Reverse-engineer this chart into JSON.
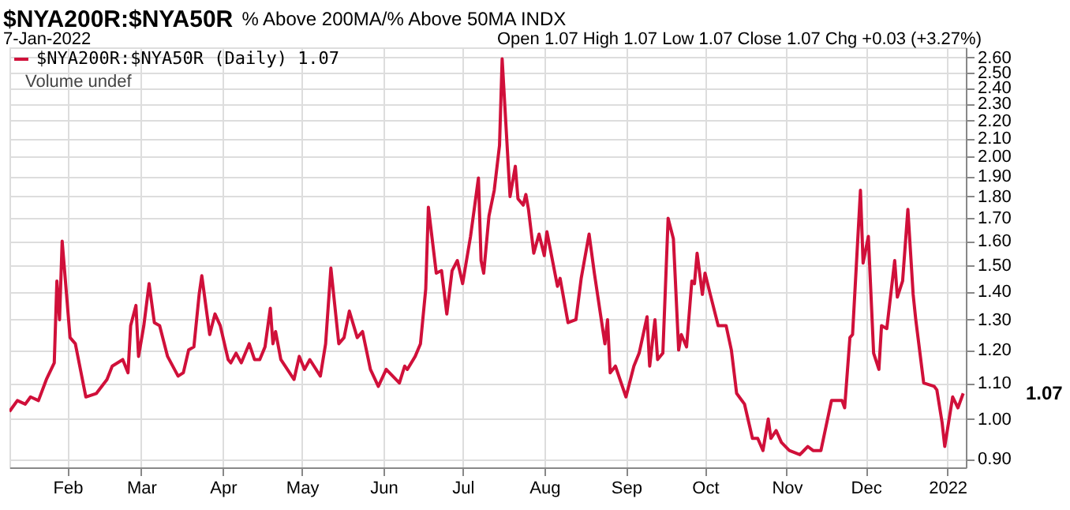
{
  "chart_data": {
    "type": "line",
    "title": "$NYA200R:$NYA50R",
    "subtitle": "% Above 200MA/% Above 50MA  INDX",
    "annotations": [
      "7-Jan-2022",
      "Open 1.07  High 1.07  Low 1.07  Close 1.07  Chg +0.03 (+3.27%)",
      "Volume undef",
      "1.07"
    ],
    "x": [
      "2021-01-10",
      "2021-01-13",
      "2021-01-16",
      "2021-01-18",
      "2021-01-21",
      "2021-01-24",
      "2021-01-27",
      "2021-01-28",
      "2021-01-29",
      "2021-01-30",
      "2021-02-02",
      "2021-02-04",
      "2021-02-08",
      "2021-02-12",
      "2021-02-16",
      "2021-02-18",
      "2021-02-22",
      "2021-02-24",
      "2021-02-25",
      "2021-02-27",
      "2021-02-28",
      "2021-03-02",
      "2021-03-04",
      "2021-03-06",
      "2021-03-08",
      "2021-03-11",
      "2021-03-15",
      "2021-03-17",
      "2021-03-19",
      "2021-03-21",
      "2021-03-23",
      "2021-03-24",
      "2021-03-27",
      "2021-03-29",
      "2021-03-31",
      "2021-04-03",
      "2021-04-04",
      "2021-04-06",
      "2021-04-08",
      "2021-04-11",
      "2021-04-13",
      "2021-04-15",
      "2021-04-17",
      "2021-04-19",
      "2021-04-20",
      "2021-04-21",
      "2021-04-23",
      "2021-04-28",
      "2021-04-30",
      "2021-05-02",
      "2021-05-04",
      "2021-05-08",
      "2021-05-10",
      "2021-05-12",
      "2021-05-15",
      "2021-05-17",
      "2021-05-19",
      "2021-05-22",
      "2021-05-24",
      "2021-05-27",
      "2021-05-30",
      "2021-06-02",
      "2021-06-07",
      "2021-06-09",
      "2021-06-10",
      "2021-06-13",
      "2021-06-15",
      "2021-06-17",
      "2021-06-18",
      "2021-06-21",
      "2021-06-23",
      "2021-06-25",
      "2021-06-27",
      "2021-06-29",
      "2021-07-01",
      "2021-07-04",
      "2021-07-07",
      "2021-07-08",
      "2021-07-09",
      "2021-07-11",
      "2021-07-13",
      "2021-07-15",
      "2021-07-16",
      "2021-07-19",
      "2021-07-21",
      "2021-07-22",
      "2021-07-24",
      "2021-07-25",
      "2021-07-26",
      "2021-07-28",
      "2021-07-30",
      "2021-08-01",
      "2021-08-02",
      "2021-08-06",
      "2021-08-07",
      "2021-08-10",
      "2021-08-13",
      "2021-08-15",
      "2021-08-18",
      "2021-08-20",
      "2021-08-24",
      "2021-08-25",
      "2021-08-26",
      "2021-08-28",
      "2021-09-01",
      "2021-09-04",
      "2021-09-06",
      "2021-09-09",
      "2021-09-10",
      "2021-09-12",
      "2021-09-13",
      "2021-09-15",
      "2021-09-17",
      "2021-09-19",
      "2021-09-21",
      "2021-09-22",
      "2021-09-24",
      "2021-09-26",
      "2021-09-27",
      "2021-09-28",
      "2021-09-30",
      "2021-10-01",
      "2021-10-03",
      "2021-10-06",
      "2021-10-09",
      "2021-10-11",
      "2021-10-13",
      "2021-10-16",
      "2021-10-19",
      "2021-10-21",
      "2021-10-23",
      "2021-10-25",
      "2021-10-26",
      "2021-10-28",
      "2021-10-30",
      "2021-11-02",
      "2021-11-06",
      "2021-11-09",
      "2021-11-11",
      "2021-11-14",
      "2021-11-18",
      "2021-11-22",
      "2021-11-23",
      "2021-11-25",
      "2021-11-26",
      "2021-11-29",
      "2021-11-30",
      "2021-12-02",
      "2021-12-04",
      "2021-12-06",
      "2021-12-07",
      "2021-12-09",
      "2021-12-12",
      "2021-12-13",
      "2021-12-15",
      "2021-12-17",
      "2021-12-19",
      "2021-12-20",
      "2021-12-23",
      "2021-12-27",
      "2021-12-28",
      "2021-12-30",
      "2021-12-31",
      "2022-01-03",
      "2022-01-05",
      "2022-01-07"
    ],
    "series": [
      {
        "name": "$NYA200R:$NYA50R (Daily) 1.07",
        "color": "#d0103a",
        "values": [
          1.02,
          1.05,
          1.04,
          1.06,
          1.05,
          1.11,
          1.16,
          1.44,
          1.3,
          1.6,
          1.24,
          1.22,
          1.06,
          1.07,
          1.11,
          1.15,
          1.17,
          1.13,
          1.28,
          1.35,
          1.18,
          1.28,
          1.43,
          1.29,
          1.28,
          1.18,
          1.12,
          1.13,
          1.2,
          1.21,
          1.39,
          1.46,
          1.25,
          1.32,
          1.28,
          1.17,
          1.16,
          1.19,
          1.16,
          1.22,
          1.17,
          1.17,
          1.21,
          1.34,
          1.22,
          1.26,
          1.17,
          1.11,
          1.18,
          1.14,
          1.17,
          1.12,
          1.22,
          1.49,
          1.22,
          1.24,
          1.33,
          1.24,
          1.26,
          1.14,
          1.09,
          1.14,
          1.1,
          1.15,
          1.14,
          1.18,
          1.22,
          1.41,
          1.75,
          1.47,
          1.48,
          1.32,
          1.48,
          1.52,
          1.43,
          1.62,
          1.89,
          1.52,
          1.47,
          1.71,
          1.83,
          2.06,
          2.59,
          1.8,
          1.95,
          1.79,
          1.76,
          1.81,
          1.74,
          1.55,
          1.63,
          1.54,
          1.64,
          1.42,
          1.45,
          1.29,
          1.3,
          1.45,
          1.63,
          1.47,
          1.22,
          1.3,
          1.13,
          1.15,
          1.06,
          1.15,
          1.19,
          1.31,
          1.15,
          1.3,
          1.17,
          1.19,
          1.7,
          1.61,
          1.2,
          1.25,
          1.21,
          1.44,
          1.43,
          1.55,
          1.39,
          1.47,
          1.39,
          1.28,
          1.28,
          1.2,
          1.07,
          1.04,
          0.95,
          0.95,
          0.92,
          1.0,
          0.95,
          0.97,
          0.94,
          0.92,
          0.91,
          0.93,
          0.92,
          0.92,
          1.05,
          1.05,
          1.03,
          1.24,
          1.25,
          1.83,
          1.51,
          1.62,
          1.19,
          1.14,
          1.28,
          1.27,
          1.52,
          1.38,
          1.44,
          1.74,
          1.39,
          1.3,
          1.1,
          1.09,
          1.08,
          0.99,
          0.93,
          1.06,
          1.03,
          1.07
        ]
      }
    ],
    "xlim": [
      "2021-01-10",
      "2022-01-08"
    ],
    "xticks": [
      {
        "value": "2021-02-01",
        "label": "Feb"
      },
      {
        "value": "2021-03-01",
        "label": "Mar"
      },
      {
        "value": "2021-04-01",
        "label": "Apr"
      },
      {
        "value": "2021-05-01",
        "label": "May"
      },
      {
        "value": "2021-06-01",
        "label": "Jun"
      },
      {
        "value": "2021-07-01",
        "label": "Jul"
      },
      {
        "value": "2021-08-01",
        "label": "Aug"
      },
      {
        "value": "2021-09-01",
        "label": "Sep"
      },
      {
        "value": "2021-10-01",
        "label": "Oct"
      },
      {
        "value": "2021-11-01",
        "label": "Nov"
      },
      {
        "value": "2021-12-01",
        "label": "Dec"
      },
      {
        "value": "2022-01-01",
        "label": "2022"
      }
    ],
    "ylim": [
      0.88,
      2.67
    ],
    "yticks": [
      {
        "value": 0.9,
        "label": "0.90"
      },
      {
        "value": 1.0,
        "label": "1.00"
      },
      {
        "value": 1.1,
        "label": "1.10"
      },
      {
        "value": 1.2,
        "label": "1.20"
      },
      {
        "value": 1.3,
        "label": "1.30"
      },
      {
        "value": 1.4,
        "label": "1.40"
      },
      {
        "value": 1.5,
        "label": "1.50"
      },
      {
        "value": 1.6,
        "label": "1.60"
      },
      {
        "value": 1.7,
        "label": "1.70"
      },
      {
        "value": 1.8,
        "label": "1.80"
      },
      {
        "value": 1.9,
        "label": "1.90"
      },
      {
        "value": 2.0,
        "label": "2.00"
      },
      {
        "value": 2.1,
        "label": "2.10"
      },
      {
        "value": 2.2,
        "label": "2.20"
      },
      {
        "value": 2.3,
        "label": "2.30"
      },
      {
        "value": 2.4,
        "label": "2.40"
      },
      {
        "value": 2.5,
        "label": "2.50"
      },
      {
        "value": 2.6,
        "label": "2.60"
      }
    ],
    "log": true,
    "grid": true,
    "legend": "top left",
    "marker": "none",
    "line_style": "solid"
  }
}
